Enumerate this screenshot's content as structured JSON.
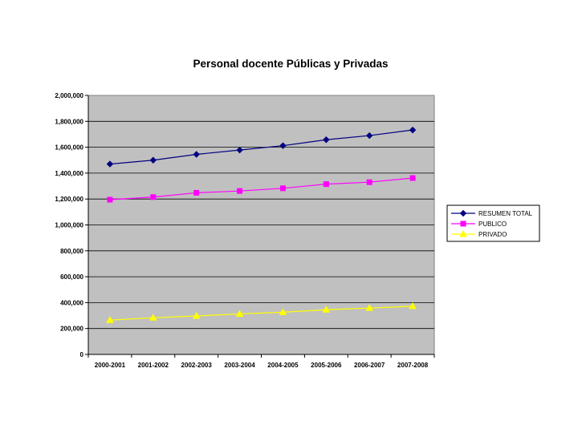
{
  "chart_data": {
    "type": "line",
    "title": "Personal docente Públicas y Privadas",
    "xlabel": "",
    "ylabel": "",
    "categories": [
      "2000-2001",
      "2001-2002",
      "2002-2003",
      "2003-2004",
      "2004-2005",
      "2005-2006",
      "2006-2007",
      "2007-2008"
    ],
    "ylim": [
      0,
      2000000
    ],
    "yticks": [
      0,
      200000,
      400000,
      600000,
      800000,
      1000000,
      1200000,
      1400000,
      1600000,
      1800000,
      2000000
    ],
    "ytick_labels": [
      "0",
      "200,000",
      "400,000",
      "600,000",
      "800,000",
      "1,000,000",
      "1,200,000",
      "1,400,000",
      "1,600,000",
      "1,800,000",
      "2,000,000"
    ],
    "grid": true,
    "legend_position": "right",
    "plot_background": "#c0c0c0",
    "series": [
      {
        "name": "RESUMEN TOTAL",
        "color": "#000080",
        "marker": "diamond",
        "values": [
          1470000,
          1500000,
          1545000,
          1578000,
          1612000,
          1658000,
          1690000,
          1733000
        ]
      },
      {
        "name": "PUBLICO",
        "color": "#ff00ff",
        "marker": "square",
        "values": [
          1195000,
          1215000,
          1248000,
          1262000,
          1283000,
          1315000,
          1330000,
          1362000
        ]
      },
      {
        "name": "PRIVADO",
        "color": "#ffff00",
        "marker": "triangle",
        "values": [
          265000,
          283000,
          297000,
          313000,
          326000,
          345000,
          358000,
          372000
        ]
      }
    ]
  }
}
